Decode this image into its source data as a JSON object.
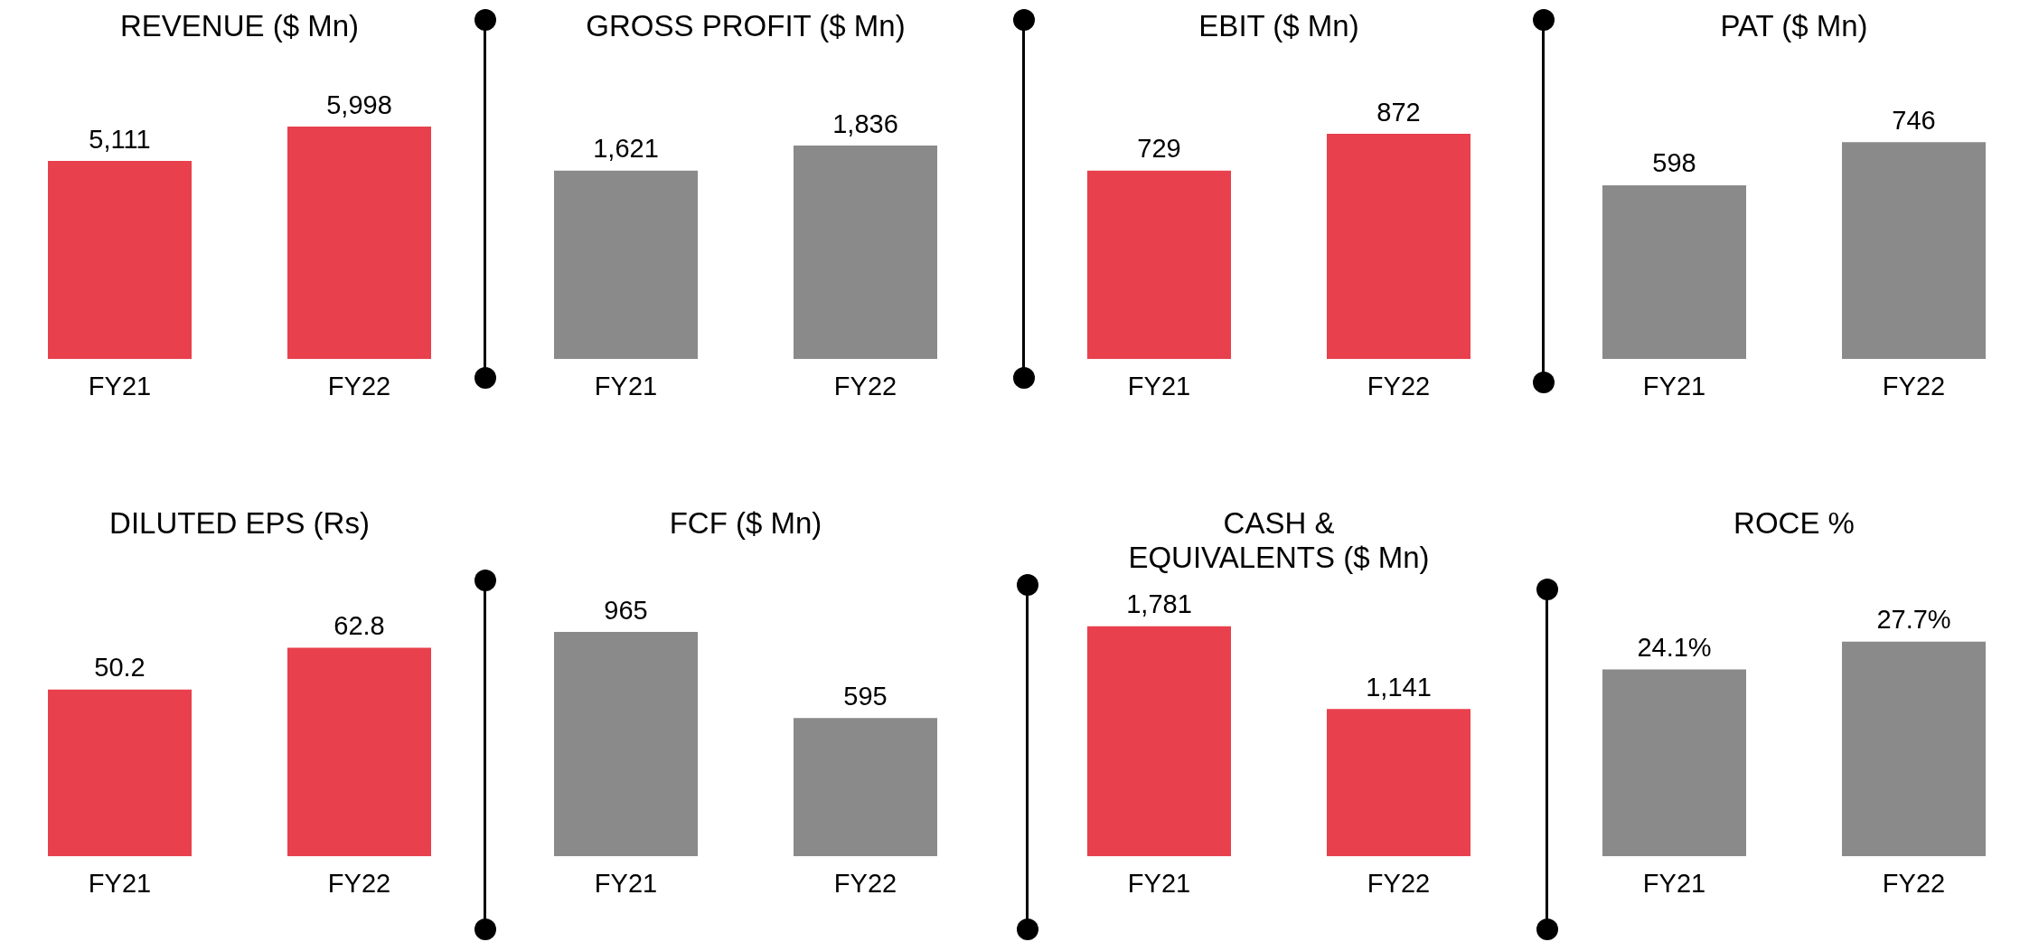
{
  "chart_data": [
    {
      "type": "bar",
      "title": "REVENUE ($ Mn)",
      "categories": [
        "FY21",
        "FY22"
      ],
      "values": [
        5111,
        5998
      ],
      "value_labels": [
        "5,111",
        "5,998"
      ],
      "color": "#e8404c",
      "grid": false,
      "legend": false
    },
    {
      "type": "bar",
      "title": "GROSS PROFIT ($ Mn)",
      "categories": [
        "FY21",
        "FY22"
      ],
      "values": [
        1621,
        1836
      ],
      "value_labels": [
        "1,621",
        "1,836"
      ],
      "color": "#8a8a8a",
      "grid": false,
      "legend": false
    },
    {
      "type": "bar",
      "title": "EBIT ($ Mn)",
      "categories": [
        "FY21",
        "FY22"
      ],
      "values": [
        729,
        872
      ],
      "value_labels": [
        "729",
        "872"
      ],
      "color": "#e8404c",
      "grid": false,
      "legend": false
    },
    {
      "type": "bar",
      "title": "PAT  ($ Mn)",
      "categories": [
        "FY21",
        "FY22"
      ],
      "values": [
        598,
        746
      ],
      "value_labels": [
        "598",
        "746"
      ],
      "color": "#8a8a8a",
      "grid": false,
      "legend": false
    },
    {
      "type": "bar",
      "title": "DILUTED EPS (Rs)",
      "categories": [
        "FY21",
        "FY22"
      ],
      "values": [
        50.2,
        62.8
      ],
      "value_labels": [
        "50.2",
        "62.8"
      ],
      "color": "#e8404c",
      "grid": false,
      "legend": false
    },
    {
      "type": "bar",
      "title": "FCF ($ Mn)",
      "categories": [
        "FY21",
        "FY22"
      ],
      "values": [
        965,
        595
      ],
      "value_labels": [
        "965",
        "595"
      ],
      "color": "#8a8a8a",
      "grid": false,
      "legend": false
    },
    {
      "type": "bar",
      "title": "CASH &  EQUIVALENTS ($ Mn)",
      "categories": [
        "FY21",
        "FY22"
      ],
      "values": [
        1781,
        1141
      ],
      "value_labels": [
        "1,781",
        "1,141"
      ],
      "color": "#e8404c",
      "grid": false,
      "legend": false
    },
    {
      "type": "bar",
      "title": "ROCE %",
      "categories": [
        "FY21",
        "FY22"
      ],
      "values": [
        24.1,
        27.7
      ],
      "value_labels": [
        "24.1%",
        "27.7%"
      ],
      "color": "#8a8a8a",
      "grid": false,
      "legend": false
    }
  ]
}
